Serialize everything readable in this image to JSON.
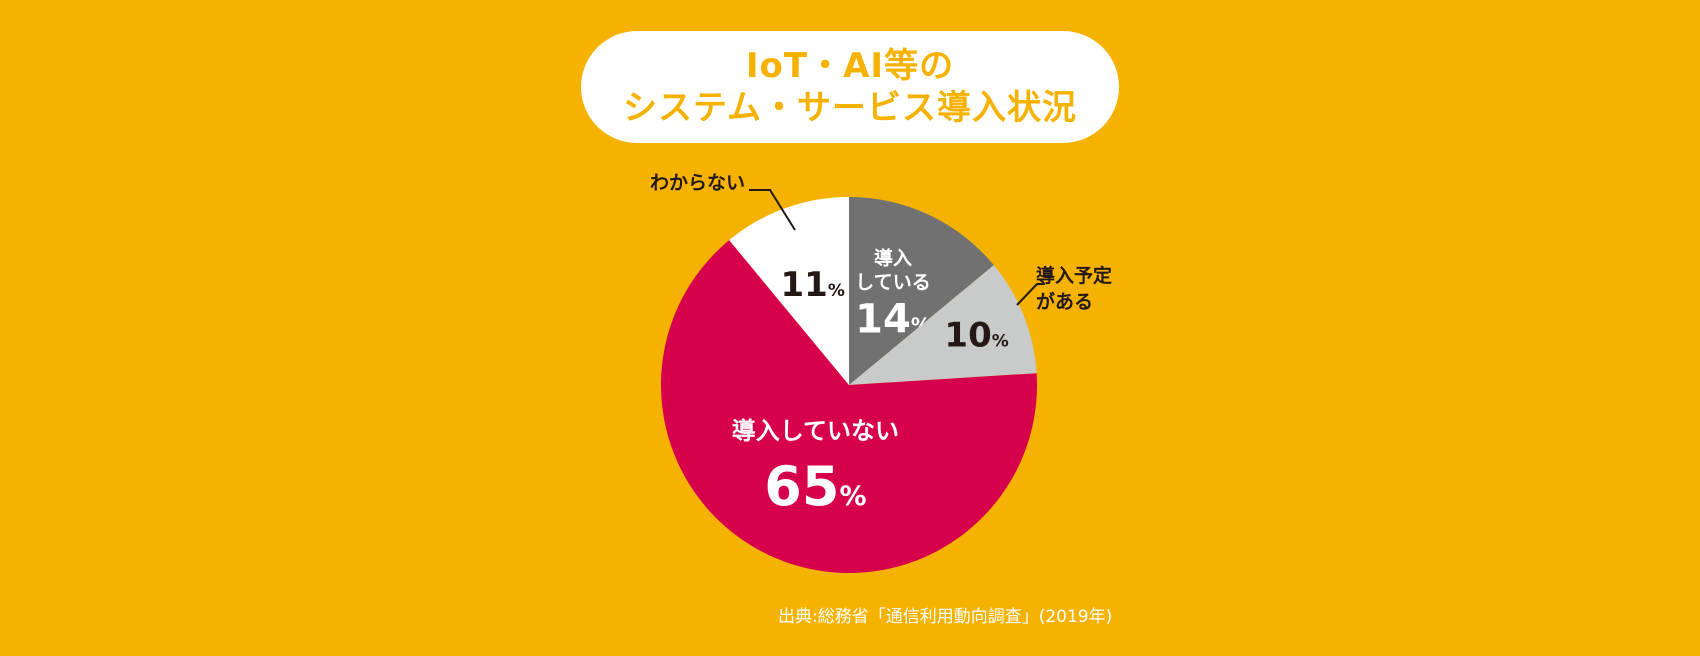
{
  "title": {
    "line1": "IoT・AI等の",
    "line2": "システム・サービス導入状況"
  },
  "colors": {
    "background": "#F6B200",
    "title_text": "#F6B200"
  },
  "chart_data": {
    "type": "pie",
    "unit": "%",
    "slices": [
      {
        "label": [
          "導入",
          "している"
        ],
        "value": 14,
        "color": "#727171",
        "text_color": "#FFFFFF"
      },
      {
        "label": [
          "導入予定",
          "がある"
        ],
        "value": 10,
        "color": "#C9CACA",
        "text_color": "#231815"
      },
      {
        "label": [
          "導入していない"
        ],
        "value": 65,
        "color": "#D7004D",
        "text_color": "#FFFFFF"
      },
      {
        "label": [
          "わからない"
        ],
        "value": 11,
        "color": "#FFFFFF",
        "text_color": "#231815"
      }
    ]
  },
  "source": "出典:総務省「通信利用動向調査」(2019年)"
}
